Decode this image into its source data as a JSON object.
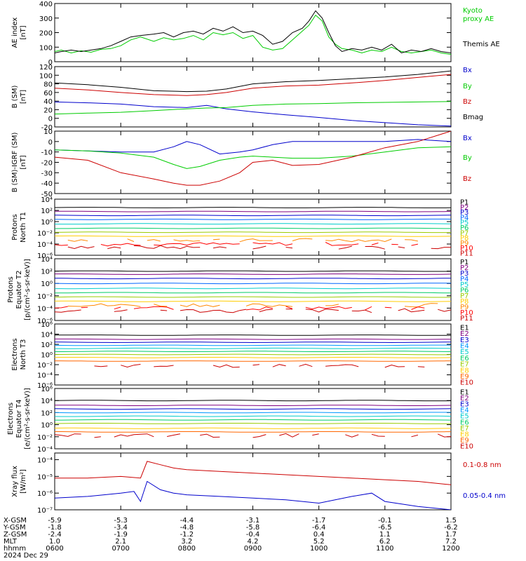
{
  "chart_data": [
    {
      "id": "ae",
      "type": "line",
      "ylabel_lines": [
        "AE index",
        "[nT]"
      ],
      "ylim": [
        0,
        400
      ],
      "yticks": [
        "0",
        "100",
        "200",
        "300",
        "400"
      ],
      "ytick_values": [
        0,
        100,
        200,
        300,
        400
      ],
      "scale": "linear",
      "series": [
        {
          "name": "Kyoto proxy AE",
          "legend_lines": [
            "Kyoto",
            "proxy AE"
          ],
          "color": "#00cc00",
          "x": [
            6,
            6.1,
            6.25,
            6.4,
            6.55,
            6.7,
            6.85,
            7,
            7.15,
            7.3,
            7.5,
            7.65,
            7.8,
            7.95,
            8.1,
            8.25,
            8.4,
            8.55,
            8.7,
            8.85,
            9,
            9.15,
            9.3,
            9.45,
            9.6,
            9.75,
            9.85,
            9.95,
            10.05,
            10.15,
            10.25,
            10.35,
            10.5,
            10.65,
            10.8,
            10.95,
            11.1,
            11.25,
            11.4,
            11.55,
            11.7,
            11.85,
            12
          ],
          "y": [
            70,
            80,
            60,
            75,
            65,
            85,
            90,
            110,
            150,
            170,
            140,
            165,
            150,
            160,
            180,
            150,
            200,
            185,
            200,
            160,
            180,
            100,
            80,
            90,
            150,
            210,
            250,
            320,
            280,
            170,
            120,
            90,
            80,
            60,
            80,
            70,
            100,
            70,
            60,
            70,
            80,
            60,
            50
          ]
        },
        {
          "name": "Themis AE",
          "legend_lines": [
            "Themis AE"
          ],
          "color": "#000000",
          "x": [
            6,
            6.1,
            6.25,
            6.4,
            6.55,
            6.7,
            6.85,
            7,
            7.15,
            7.3,
            7.5,
            7.65,
            7.8,
            7.95,
            8.1,
            8.25,
            8.4,
            8.55,
            8.7,
            8.85,
            9,
            9.15,
            9.3,
            9.45,
            9.6,
            9.75,
            9.85,
            9.95,
            10.05,
            10.15,
            10.25,
            10.35,
            10.5,
            10.65,
            10.8,
            10.95,
            11.1,
            11.25,
            11.4,
            11.55,
            11.7,
            11.85,
            12
          ],
          "y": [
            60,
            70,
            80,
            70,
            80,
            90,
            110,
            140,
            170,
            180,
            190,
            200,
            170,
            200,
            210,
            190,
            230,
            210,
            240,
            200,
            210,
            180,
            120,
            140,
            200,
            230,
            280,
            350,
            300,
            200,
            110,
            70,
            90,
            80,
            100,
            80,
            120,
            60,
            80,
            70,
            90,
            70,
            60
          ]
        }
      ]
    },
    {
      "id": "bsm",
      "type": "line",
      "ylabel_lines": [
        "B (SM)",
        "[nT]"
      ],
      "ylim": [
        -20,
        120
      ],
      "yticks": [
        "-20",
        "0",
        "20",
        "40",
        "60",
        "80",
        "100",
        "120"
      ],
      "ytick_values": [
        -20,
        0,
        20,
        40,
        60,
        80,
        100,
        120
      ],
      "scale": "linear",
      "series": [
        {
          "name": "Bx",
          "color": "#0000cc",
          "x": [
            6,
            6.5,
            7,
            7.5,
            8,
            8.3,
            8.6,
            9,
            9.5,
            10,
            10.5,
            11,
            11.5,
            12
          ],
          "y": [
            38,
            36,
            33,
            27,
            25,
            30,
            22,
            15,
            8,
            2,
            -5,
            -10,
            -15,
            -18
          ]
        },
        {
          "name": "By",
          "color": "#00cc00",
          "x": [
            6,
            6.5,
            7,
            7.5,
            8,
            8.3,
            8.6,
            9,
            9.5,
            10,
            10.5,
            11,
            11.5,
            12
          ],
          "y": [
            10,
            12,
            14,
            18,
            22,
            24,
            25,
            30,
            33,
            34,
            36,
            37,
            38,
            39
          ]
        },
        {
          "name": "Bz",
          "color": "#cc0000",
          "x": [
            6,
            6.5,
            7,
            7.5,
            8,
            8.3,
            8.6,
            9,
            9.5,
            10,
            10.5,
            11,
            11.5,
            12
          ],
          "y": [
            70,
            66,
            60,
            55,
            53,
            55,
            60,
            70,
            75,
            77,
            82,
            88,
            95,
            102
          ]
        },
        {
          "name": "Bmag",
          "color": "#000000",
          "x": [
            6,
            6.5,
            7,
            7.5,
            8,
            8.3,
            8.6,
            9,
            9.5,
            10,
            10.5,
            11,
            11.5,
            12
          ],
          "y": [
            82,
            78,
            72,
            64,
            62,
            63,
            68,
            80,
            85,
            88,
            92,
            96,
            102,
            110
          ]
        }
      ]
    },
    {
      "id": "bigrf",
      "type": "line",
      "ylabel_lines": [
        "B (SM)-IGRF (SM)",
        "[nT]"
      ],
      "ylim": [
        -50,
        10
      ],
      "yticks": [
        "-50",
        "-40",
        "-30",
        "-20",
        "-10",
        "0",
        "10"
      ],
      "ytick_values": [
        -50,
        -40,
        -30,
        -20,
        -10,
        0,
        10
      ],
      "scale": "linear",
      "series": [
        {
          "name": "Bx",
          "color": "#0000cc",
          "x": [
            6,
            6.5,
            7,
            7.5,
            7.8,
            8,
            8.2,
            8.5,
            8.8,
            9,
            9.3,
            9.6,
            10,
            10.5,
            11,
            11.5,
            12
          ],
          "y": [
            -8,
            -9,
            -10,
            -10,
            -5,
            0,
            -3,
            -12,
            -10,
            -8,
            -3,
            0,
            0,
            0,
            0,
            2,
            0
          ]
        },
        {
          "name": "By",
          "color": "#00cc00",
          "x": [
            6,
            6.5,
            7,
            7.5,
            7.8,
            8,
            8.2,
            8.5,
            8.8,
            9,
            9.3,
            9.6,
            10,
            10.5,
            11,
            11.5,
            12
          ],
          "y": [
            -8,
            -9,
            -11,
            -15,
            -22,
            -26,
            -24,
            -18,
            -15,
            -14,
            -15,
            -16,
            -16,
            -14,
            -10,
            -6,
            -5
          ]
        },
        {
          "name": "Bz",
          "color": "#cc0000",
          "x": [
            6,
            6.5,
            7,
            7.5,
            7.8,
            8,
            8.2,
            8.5,
            8.8,
            9,
            9.3,
            9.6,
            10,
            10.5,
            11,
            11.5,
            12
          ],
          "y": [
            -15,
            -18,
            -30,
            -36,
            -40,
            -42,
            -42,
            -38,
            -30,
            -20,
            -18,
            -23,
            -22,
            -15,
            -6,
            0,
            10
          ]
        }
      ]
    },
    {
      "id": "pn1",
      "type": "line",
      "ylabel_lines": [
        "Protons",
        "North T1"
      ],
      "ylim": [
        -6,
        4
      ],
      "yticks": [
        "10⁻⁶",
        "10⁻⁴",
        "10⁻²",
        "10⁰",
        "10²",
        "10⁴"
      ],
      "ytick_values": [
        -6,
        -4,
        -2,
        0,
        2,
        4
      ],
      "scale": "log10",
      "level_names": [
        "P1",
        "P2",
        "P3",
        "P4",
        "P5",
        "P6",
        "P7",
        "P8",
        "P9",
        "P10",
        "P11"
      ],
      "level_colors": [
        "#000000",
        "#800080",
        "#0000cc",
        "#0066ff",
        "#00cccc",
        "#00cc66",
        "#99cc00",
        "#ffcc00",
        "#ff8800",
        "#ff0000",
        "#cc0000"
      ],
      "level_values": [
        2.5,
        1.8,
        1.1,
        0.4,
        -0.4,
        -1.2,
        -1.9,
        -2.6,
        -3.3,
        -4.0,
        -4.6
      ],
      "noisy_from": 8
    },
    {
      "id": "pe2",
      "type": "line",
      "ylabel_lines": [
        "Protons",
        "Equator T2",
        "[p/(cm²-s-sr-keV)]"
      ],
      "ylim": [
        -6,
        4
      ],
      "yticks": [
        "10⁻⁶",
        "10⁻⁴",
        "10⁻²",
        "10⁰",
        "10²",
        "10⁴"
      ],
      "ytick_values": [
        -6,
        -4,
        -2,
        0,
        2,
        4
      ],
      "scale": "log10",
      "level_names": [
        "P1",
        "P2",
        "P3",
        "P4",
        "P5",
        "P6",
        "P7",
        "P8",
        "P9",
        "P10",
        "P11"
      ],
      "level_colors": [
        "#000000",
        "#800080",
        "#0000cc",
        "#0066ff",
        "#00cccc",
        "#00cc66",
        "#99cc00",
        "#ffcc00",
        "#ff8800",
        "#ff0000",
        "#cc0000"
      ],
      "level_values": [
        2.0,
        1.5,
        0.8,
        0.0,
        -0.8,
        -1.5,
        -2.2,
        -2.9,
        -3.5,
        -4.0,
        -4.4
      ],
      "noisy_from": 8
    },
    {
      "id": "en3",
      "type": "line",
      "ylabel_lines": [
        "Electrons",
        "North T3"
      ],
      "ylim": [
        -6,
        6
      ],
      "yticks": [
        "10⁻⁶",
        "10⁻⁴",
        "10⁻²",
        "10⁰",
        "10²",
        "10⁴",
        "10⁶"
      ],
      "ytick_values": [
        -6,
        -4,
        -2,
        0,
        2,
        4,
        6
      ],
      "scale": "log10",
      "level_names": [
        "E1",
        "E2",
        "E3",
        "E4",
        "E5",
        "E6",
        "E7",
        "E8",
        "E9",
        "E10"
      ],
      "level_colors": [
        "#000000",
        "#800080",
        "#0000cc",
        "#0099ff",
        "#00cccc",
        "#00cc66",
        "#99cc00",
        "#ffcc00",
        "#ff6600",
        "#cc0000"
      ],
      "level_values": [
        3.8,
        3.0,
        2.4,
        1.8,
        1.2,
        0.6,
        0.0,
        -0.6,
        -1.3,
        -2.2
      ],
      "noisy_from": 9
    },
    {
      "id": "ee4",
      "type": "line",
      "ylabel_lines": [
        "Electrons",
        "Equator T4",
        "[e/(cm²-s-sr-keV)]"
      ],
      "ylim": [
        -4,
        6
      ],
      "yticks": [
        "10⁻⁴",
        "10⁻²",
        "10⁰",
        "10²",
        "10⁴",
        "10⁶"
      ],
      "ytick_values": [
        -4,
        -2,
        0,
        2,
        4,
        6
      ],
      "scale": "log10",
      "level_names": [
        "E1",
        "E2",
        "E3",
        "E4",
        "E5",
        "E6",
        "E7",
        "E8",
        "E9",
        "E10"
      ],
      "level_colors": [
        "#000000",
        "#800080",
        "#0000cc",
        "#0099ff",
        "#00cccc",
        "#00cc66",
        "#99cc00",
        "#ffcc00",
        "#ff6600",
        "#cc0000"
      ],
      "level_values": [
        4.0,
        3.2,
        2.6,
        2.0,
        1.4,
        0.8,
        0.2,
        -0.6,
        -1.2,
        -1.8
      ],
      "noisy_from": 9
    },
    {
      "id": "xray",
      "type": "line",
      "ylabel_lines": [
        "Xray flux",
        "[W/m²]"
      ],
      "ylim": [
        -7,
        -3.6
      ],
      "yticks": [
        "10⁻⁷",
        "10⁻⁶",
        "10⁻⁵",
        "10⁻⁴"
      ],
      "ytick_values": [
        -7,
        -6,
        -5,
        -4
      ],
      "scale": "log10",
      "series": [
        {
          "name": "0.1-0.8 nm",
          "color": "#cc0000",
          "x": [
            6,
            6.5,
            7,
            7.3,
            7.4,
            7.6,
            7.8,
            8,
            8.5,
            9,
            9.5,
            10,
            10.5,
            11,
            11.5,
            12
          ],
          "y": [
            -5.1,
            -5.1,
            -5.0,
            -5.1,
            -4.1,
            -4.3,
            -4.5,
            -4.6,
            -4.7,
            -4.8,
            -4.9,
            -5.0,
            -5.1,
            -5.2,
            -5.3,
            -5.5
          ]
        },
        {
          "name": "0.05-0.4 nm",
          "color": "#0000cc",
          "x": [
            6,
            6.5,
            7,
            7.2,
            7.3,
            7.4,
            7.6,
            7.8,
            8,
            8.5,
            9,
            9.5,
            10,
            10.5,
            10.8,
            11,
            11.5,
            12
          ],
          "y": [
            -6.3,
            -6.2,
            -6.0,
            -5.9,
            -6.5,
            -5.3,
            -5.8,
            -6.0,
            -6.1,
            -6.2,
            -6.3,
            -6.4,
            -6.6,
            -6.2,
            -6.0,
            -6.5,
            -6.8,
            -7.0
          ]
        }
      ]
    }
  ],
  "footer": {
    "rows": [
      {
        "label": "X-GSM",
        "values": [
          "-5.9",
          "-5.3",
          "-4.4",
          "-3.1",
          "-1.7",
          "-0.1",
          "1.5"
        ]
      },
      {
        "label": "Y-GSM",
        "values": [
          "-1.8",
          "-3.4",
          "-4.8",
          "-5.8",
          "-6.4",
          "-6.5",
          "-6.2"
        ]
      },
      {
        "label": "Z-GSM",
        "values": [
          "-2.4",
          "-1.9",
          "-1.2",
          "-0.4",
          "0.4",
          "1.1",
          "1.7"
        ]
      },
      {
        "label": "MLT",
        "values": [
          "1.0",
          "2.1",
          "3.2",
          "4.2",
          "5.2",
          "6.2",
          "7.2"
        ]
      },
      {
        "label": "hhmm",
        "values": [
          "0600",
          "0700",
          "0800",
          "0900",
          "1000",
          "1100",
          "1200"
        ]
      }
    ],
    "date": "2024 Dec 29"
  },
  "colors": {
    "axis": "#000000",
    "background": "#ffffff"
  }
}
